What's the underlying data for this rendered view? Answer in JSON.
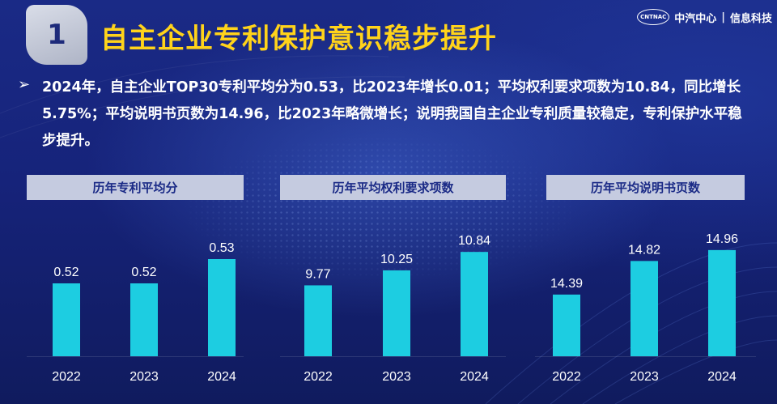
{
  "header": {
    "section_number": "1",
    "title": "自主企业专利保护意识稳步提升",
    "logo_mark": "CNTNAC",
    "logo_org": "中汽中心",
    "logo_sep": "|",
    "logo_dept": "信息科技"
  },
  "summary": {
    "bullet_icon": "triangle-right-icon",
    "text": "2024年，自主企业TOP30专利平均分为0.53，比2023年增长0.01；平均权利要求项数为10.84，同比增长5.75%；平均说明书页数为14.96，比2023年略微增长；说明我国自主企业专利质量较稳定，专利保护水平稳步提升。"
  },
  "colors": {
    "bar": "#1dcde1",
    "title": "#ffd31a",
    "header_bg": "#c5cbe0",
    "header_text": "#1a2a86",
    "background": "#16237a"
  },
  "chart_data": [
    {
      "type": "bar",
      "title": "历年专利平均分",
      "categories": [
        "2022",
        "2023",
        "2024"
      ],
      "values": [
        0.52,
        0.52,
        0.53
      ],
      "value_labels": [
        "0.52",
        "0.52",
        "0.53"
      ],
      "ylim": [
        0.49,
        0.535
      ],
      "grid": false
    },
    {
      "type": "bar",
      "title": "历年平均权利要求项数",
      "categories": [
        "2022",
        "2023",
        "2024"
      ],
      "values": [
        9.77,
        10.25,
        10.84
      ],
      "value_labels": [
        "9.77",
        "10.25",
        "10.84"
      ],
      "ylim": [
        7.5,
        11.0
      ],
      "grid": false
    },
    {
      "type": "bar",
      "title": "历年平均说明书页数",
      "categories": [
        "2022",
        "2023",
        "2024"
      ],
      "values": [
        14.39,
        14.82,
        14.96
      ],
      "value_labels": [
        "14.39",
        "14.82",
        "14.96"
      ],
      "ylim": [
        13.6,
        15.0
      ],
      "grid": false
    }
  ]
}
